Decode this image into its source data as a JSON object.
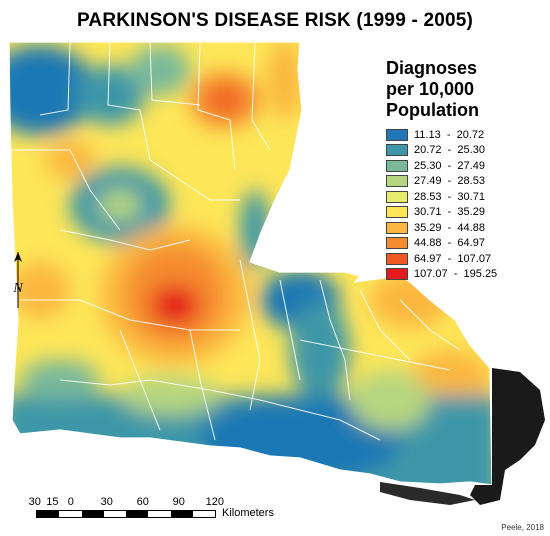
{
  "title": "PARKINSON'S DISEASE RISK (1999 - 2005)",
  "legend": {
    "title_lines": [
      "Diagnoses",
      "per 10,000",
      "Population"
    ],
    "items": [
      {
        "range": "11.13  -  20.72",
        "color": "#1f78b4"
      },
      {
        "range": "20.72  -  25.30",
        "color": "#3d97a8"
      },
      {
        "range": "25.30  -  27.49",
        "color": "#79b99a"
      },
      {
        "range": "27.49  -  28.53",
        "color": "#b6d67f"
      },
      {
        "range": "28.53  -  30.71",
        "color": "#e6ed6c"
      },
      {
        "range": "30.71  -  35.29",
        "color": "#fde658"
      },
      {
        "range": "35.29  -  44.88",
        "color": "#fbb741"
      },
      {
        "range": "44.88  -  64.97",
        "color": "#f58a2e"
      },
      {
        "range": "64.97  -  107.07",
        "color": "#f05a22"
      },
      {
        "range": "107.07  -  195.25",
        "color": "#e41a1c"
      }
    ]
  },
  "scale": {
    "ticks": [
      "30",
      "15",
      "0",
      "30",
      "60",
      "90",
      "120"
    ],
    "unit": "Kilometers"
  },
  "north_arrow": {
    "letter": "N"
  },
  "credit": "Peele, 2018"
}
